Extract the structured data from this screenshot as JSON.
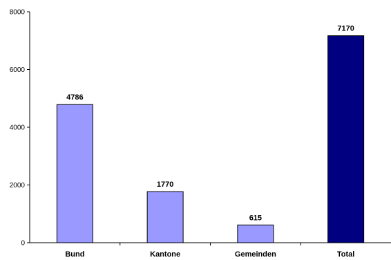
{
  "chart_data": {
    "type": "bar",
    "title": "",
    "xlabel": "",
    "ylabel": "",
    "categories": [
      "Bund",
      "Kantone",
      "Gemeinden",
      "Total"
    ],
    "values": [
      4786,
      1770,
      615,
      7170
    ],
    "data_labels": [
      "4786",
      "1770",
      "615",
      "7170"
    ],
    "bar_colors": [
      "#9999ff",
      "#9999ff",
      "#9999ff",
      "#000080"
    ],
    "ylim": [
      0,
      8000
    ],
    "yticks": [
      0,
      2000,
      4000,
      6000,
      8000
    ],
    "ytick_labels": [
      "0",
      "2000",
      "4000",
      "6000",
      "8000"
    ],
    "grid": false,
    "legend": "none"
  }
}
